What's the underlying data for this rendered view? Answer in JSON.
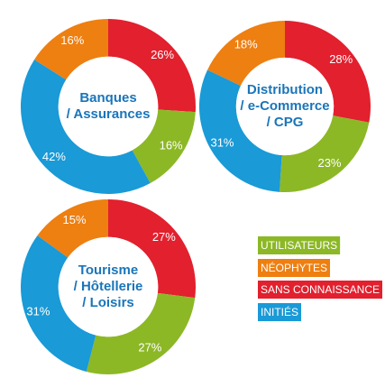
{
  "chart_data": [
    {
      "type": "donut",
      "title": [
        "Banques",
        "/ Assurances"
      ],
      "values": [
        16,
        16,
        26,
        42
      ],
      "value_labels": [
        "16%",
        "16%",
        "26%",
        "42%"
      ]
    },
    {
      "type": "donut",
      "title": [
        "Distribution",
        "/ e-Commerce",
        "/ CPG"
      ],
      "values": [
        23,
        18,
        28,
        31
      ],
      "value_labels": [
        "23%",
        "18%",
        "28%",
        "31%"
      ]
    },
    {
      "type": "donut",
      "title": [
        "Tourisme",
        "/ Hôtellerie",
        "/ Loisirs"
      ],
      "values": [
        27,
        15,
        27,
        31
      ],
      "value_labels": [
        "27%",
        "15%",
        "27%",
        "31%"
      ]
    }
  ],
  "legend": {
    "names": [
      "UTILISATEURS",
      "NÉOPHYTES",
      "SANS CONNAISSANCE",
      "INITIÉS"
    ],
    "colors": [
      "#8cb826",
      "#ee7f11",
      "#e2202e",
      "#1a9ad7"
    ]
  }
}
